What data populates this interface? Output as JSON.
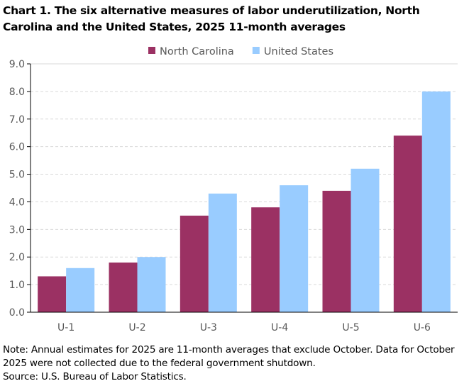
{
  "chart_data": {
    "type": "bar",
    "title": "Chart 1. The six alternative measures of labor underutilization, North Carolina and the United States, 2025 11-month averages",
    "categories": [
      "U-1",
      "U-2",
      "U-3",
      "U-4",
      "U-5",
      "U-6"
    ],
    "series": [
      {
        "name": "North Carolina",
        "color": "#9B3163",
        "values": [
          1.3,
          1.8,
          3.5,
          3.8,
          4.4,
          6.4
        ]
      },
      {
        "name": "United States",
        "color": "#99CCFF",
        "values": [
          1.6,
          2.0,
          4.3,
          4.6,
          5.2,
          8.0
        ]
      }
    ],
    "yticks": [
      "0.0",
      "1.0",
      "2.0",
      "3.0",
      "4.0",
      "5.0",
      "6.0",
      "7.0",
      "8.0",
      "9.0"
    ],
    "ylim": [
      0,
      9
    ],
    "xlabel": "",
    "ylabel": "",
    "grid": "horizontal dashed",
    "legend": "top-center"
  },
  "note": "Note: Annual estimates for 2025 are 11-month averages that exclude October. Data for October 2025 were not collected due to the federal government shutdown.",
  "source": "Source: U.S. Bureau of Labor Statistics."
}
